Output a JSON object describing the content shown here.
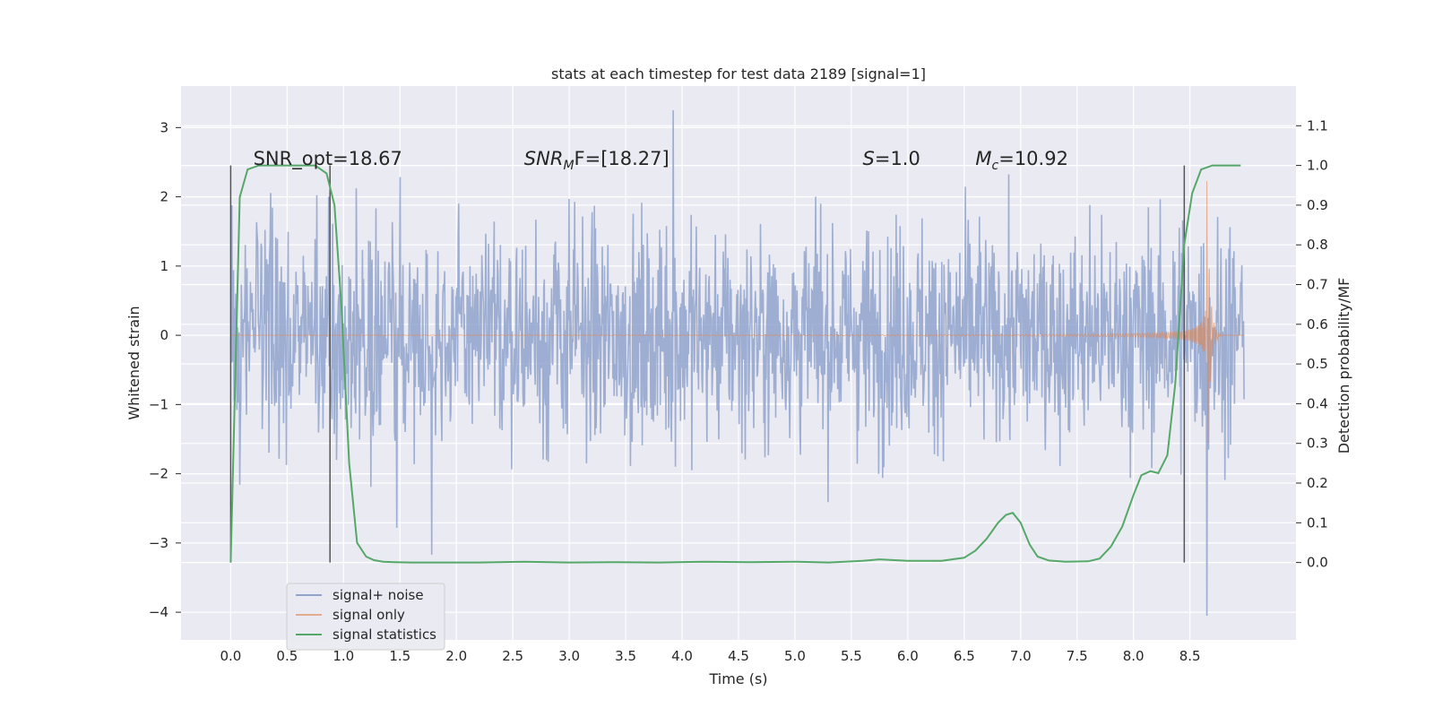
{
  "chart_data": {
    "type": "line",
    "title": "stats at each timestep for test data 2189 [signal=1]",
    "xlabel": "Time (s)",
    "ylabel": "Whitened strain",
    "y2label": "Detection probability/MF",
    "xlim": [
      -0.44,
      9.44
    ],
    "ylim": [
      -4.4,
      3.6
    ],
    "y2lim": [
      -0.195,
      1.2
    ],
    "xticks": [
      "0.0",
      "0.5",
      "1.0",
      "1.5",
      "2.0",
      "2.5",
      "3.0",
      "3.5",
      "4.0",
      "4.5",
      "5.0",
      "5.5",
      "6.0",
      "6.5",
      "7.0",
      "7.5",
      "8.0",
      "8.5"
    ],
    "yticks": [
      "3",
      "2",
      "1",
      "0",
      "−1",
      "−2",
      "−3",
      "−4"
    ],
    "y2ticks": [
      "1.1",
      "1.0",
      "0.9",
      "0.8",
      "0.7",
      "0.6",
      "0.5",
      "0.4",
      "0.3",
      "0.2",
      "0.1",
      "0.0"
    ],
    "grid": true,
    "legend_position": "lower-left",
    "colors": {
      "background": "#eaeaf2",
      "grid": "#ffffff",
      "signal_noise": "#8fa3cc",
      "signal_only": "#dd8452",
      "statistics": "#55a868",
      "markers": "#555555"
    },
    "series": [
      {
        "name": "signal+ noise",
        "axis": "left",
        "x_range": [
          0.0,
          8.98
        ],
        "typical_amplitude": 1.0,
        "peak_max": 3.25,
        "peak_min": -4.05,
        "notable_peaks": [
          [
            3.92,
            3.25
          ],
          [
            1.78,
            -3.17
          ],
          [
            1.47,
            -2.78
          ],
          [
            8.65,
            -4.05
          ]
        ]
      },
      {
        "name": "signal only",
        "axis": "left",
        "chirp_merger_time": 8.65,
        "chirp_peak_amplitude": 2.35
      },
      {
        "name": "signal statistics",
        "axis": "right",
        "x": [
          0.0,
          0.08,
          0.15,
          0.25,
          0.4,
          0.6,
          0.75,
          0.85,
          0.92,
          0.98,
          1.05,
          1.12,
          1.2,
          1.27,
          1.35,
          1.45,
          1.6,
          1.8,
          2.2,
          2.6,
          3.0,
          3.4,
          3.8,
          4.2,
          4.6,
          5.0,
          5.3,
          5.6,
          5.75,
          6.0,
          6.3,
          6.5,
          6.6,
          6.7,
          6.8,
          6.87,
          6.93,
          7.0,
          7.08,
          7.15,
          7.25,
          7.4,
          7.6,
          7.7,
          7.8,
          7.9,
          8.0,
          8.07,
          8.15,
          8.22,
          8.3,
          8.37,
          8.45,
          8.52,
          8.6,
          8.7,
          8.8,
          8.95
        ],
        "values": [
          0.0,
          0.92,
          0.99,
          1.0,
          1.0,
          1.0,
          1.0,
          0.98,
          0.9,
          0.65,
          0.25,
          0.05,
          0.015,
          0.006,
          0.002,
          0.001,
          0.0,
          0.0,
          0.0,
          0.002,
          0.0,
          0.001,
          0.0,
          0.002,
          0.001,
          0.002,
          0.0,
          0.004,
          0.008,
          0.004,
          0.004,
          0.012,
          0.03,
          0.06,
          0.1,
          0.12,
          0.125,
          0.1,
          0.045,
          0.015,
          0.005,
          0.002,
          0.003,
          0.01,
          0.04,
          0.09,
          0.17,
          0.22,
          0.23,
          0.225,
          0.27,
          0.45,
          0.8,
          0.93,
          0.99,
          1.0,
          1.0,
          1.0
        ]
      }
    ],
    "vertical_lines_x": [
      0.0,
      0.88,
      8.45
    ],
    "annotations": [
      {
        "text": "SNR_opt=18.67",
        "x": 0.2
      },
      {
        "base": "SNR",
        "sub": "M",
        "rest": "F=[18.27]",
        "x": 2.6
      },
      {
        "base": "S",
        "sub": "",
        "rest": "=1.0",
        "x": 5.6
      },
      {
        "base": "M",
        "sub": "c",
        "rest": "=10.92",
        "x": 6.6
      }
    ]
  }
}
